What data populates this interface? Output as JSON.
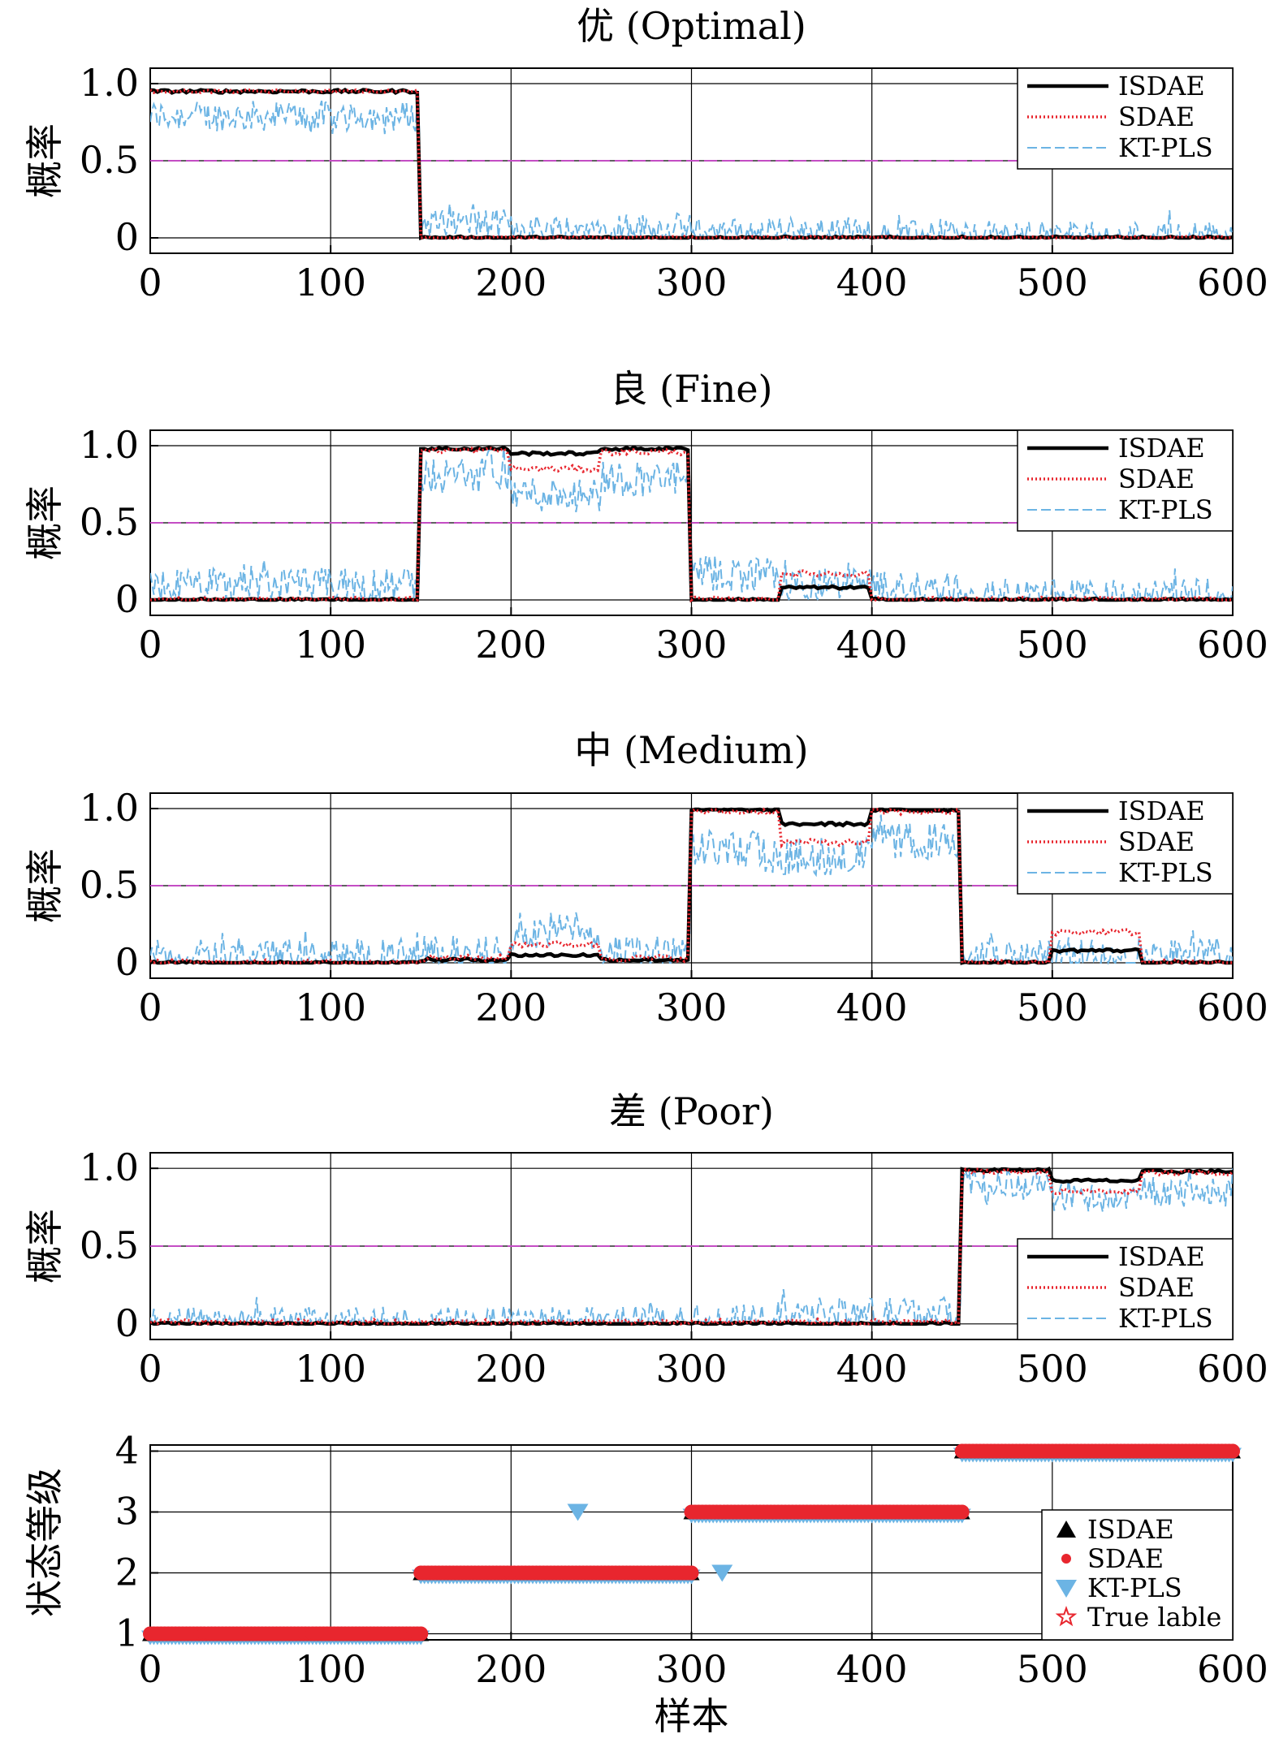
{
  "chart_data": [
    {
      "type": "line",
      "title": "优 (Optimal)",
      "ylabel": "概率",
      "xlim": [
        0,
        600
      ],
      "ylim": [
        -0.1,
        1.1
      ],
      "xticks": [
        "0",
        "100",
        "200",
        "300",
        "400",
        "500",
        "600"
      ],
      "yticks": [
        "0",
        "0.5",
        "1.0"
      ],
      "grid": true,
      "threshold": 0.5,
      "legend": {
        "position": "top-right",
        "entries": [
          "ISDAE",
          "SDAE",
          "KT-PLS"
        ]
      },
      "series": [
        {
          "name": "ISDAE",
          "segments": [
            {
              "x": [
                0,
                150
              ],
              "y": 0.95
            },
            {
              "x": [
                150,
                600
              ],
              "y": 0.0
            }
          ],
          "noise": 0.01
        },
        {
          "name": "SDAE",
          "segments": [
            {
              "x": [
                0,
                150
              ],
              "y": 0.95
            },
            {
              "x": [
                150,
                600
              ],
              "y": 0.0
            }
          ],
          "noise": 0.01
        },
        {
          "name": "KT-PLS",
          "segments": [
            {
              "x": [
                0,
                150
              ],
              "y": 0.8
            },
            {
              "x": [
                150,
                200
              ],
              "y": 0.1
            },
            {
              "x": [
                200,
                300
              ],
              "y": 0.07
            },
            {
              "x": [
                300,
                400
              ],
              "y": 0.04
            },
            {
              "x": [
                400,
                600
              ],
              "y": 0.02
            }
          ],
          "noise": 0.1
        }
      ]
    },
    {
      "type": "line",
      "title": "良 (Fine)",
      "ylabel": "概率",
      "xlim": [
        0,
        600
      ],
      "ylim": [
        -0.1,
        1.1
      ],
      "xticks": [
        "0",
        "100",
        "200",
        "300",
        "400",
        "500",
        "600"
      ],
      "yticks": [
        "0",
        "0.5",
        "1.0"
      ],
      "grid": true,
      "threshold": 0.5,
      "legend": {
        "position": "top-right",
        "entries": [
          "ISDAE",
          "SDAE",
          "KT-PLS"
        ]
      },
      "series": [
        {
          "name": "ISDAE",
          "segments": [
            {
              "x": [
                0,
                150
              ],
              "y": 0.0
            },
            {
              "x": [
                150,
                200
              ],
              "y": 0.98
            },
            {
              "x": [
                200,
                250
              ],
              "y": 0.95
            },
            {
              "x": [
                250,
                300
              ],
              "y": 0.98
            },
            {
              "x": [
                300,
                350
              ],
              "y": 0.0
            },
            {
              "x": [
                350,
                400
              ],
              "y": 0.08
            },
            {
              "x": [
                400,
                600
              ],
              "y": 0.0
            }
          ],
          "noise": 0.01
        },
        {
          "name": "SDAE",
          "segments": [
            {
              "x": [
                0,
                150
              ],
              "y": 0.0
            },
            {
              "x": [
                150,
                200
              ],
              "y": 0.97
            },
            {
              "x": [
                200,
                250
              ],
              "y": 0.85
            },
            {
              "x": [
                250,
                300
              ],
              "y": 0.96
            },
            {
              "x": [
                300,
                350
              ],
              "y": 0.0
            },
            {
              "x": [
                350,
                400
              ],
              "y": 0.17
            },
            {
              "x": [
                400,
                600
              ],
              "y": 0.0
            }
          ],
          "noise": 0.02
        },
        {
          "name": "KT-PLS",
          "segments": [
            {
              "x": [
                0,
                150
              ],
              "y": 0.1
            },
            {
              "x": [
                150,
                200
              ],
              "y": 0.82
            },
            {
              "x": [
                200,
                250
              ],
              "y": 0.7
            },
            {
              "x": [
                250,
                300
              ],
              "y": 0.8
            },
            {
              "x": [
                300,
                350
              ],
              "y": 0.18
            },
            {
              "x": [
                350,
                400
              ],
              "y": 0.1
            },
            {
              "x": [
                400,
                450
              ],
              "y": 0.08
            },
            {
              "x": [
                450,
                600
              ],
              "y": 0.03
            }
          ],
          "noise": 0.12
        }
      ]
    },
    {
      "type": "line",
      "title": "中 (Medium)",
      "ylabel": "概率",
      "xlim": [
        0,
        600
      ],
      "ylim": [
        -0.1,
        1.1
      ],
      "xticks": [
        "0",
        "100",
        "200",
        "300",
        "400",
        "500",
        "600"
      ],
      "yticks": [
        "0",
        "0.5",
        "1.0"
      ],
      "grid": true,
      "threshold": 0.5,
      "legend": {
        "position": "top-right",
        "entries": [
          "ISDAE",
          "SDAE",
          "KT-PLS"
        ]
      },
      "series": [
        {
          "name": "ISDAE",
          "segments": [
            {
              "x": [
                0,
                150
              ],
              "y": 0.0
            },
            {
              "x": [
                150,
                200
              ],
              "y": 0.02
            },
            {
              "x": [
                200,
                250
              ],
              "y": 0.05
            },
            {
              "x": [
                250,
                300
              ],
              "y": 0.02
            },
            {
              "x": [
                300,
                350
              ],
              "y": 0.99
            },
            {
              "x": [
                350,
                400
              ],
              "y": 0.9
            },
            {
              "x": [
                400,
                450
              ],
              "y": 0.99
            },
            {
              "x": [
                450,
                500
              ],
              "y": 0.0
            },
            {
              "x": [
                500,
                550
              ],
              "y": 0.08
            },
            {
              "x": [
                550,
                600
              ],
              "y": 0.0
            }
          ],
          "noise": 0.01
        },
        {
          "name": "SDAE",
          "segments": [
            {
              "x": [
                0,
                150
              ],
              "y": 0.0
            },
            {
              "x": [
                150,
                200
              ],
              "y": 0.03
            },
            {
              "x": [
                200,
                250
              ],
              "y": 0.12
            },
            {
              "x": [
                250,
                300
              ],
              "y": 0.03
            },
            {
              "x": [
                300,
                350
              ],
              "y": 0.98
            },
            {
              "x": [
                350,
                400
              ],
              "y": 0.78
            },
            {
              "x": [
                400,
                450
              ],
              "y": 0.98
            },
            {
              "x": [
                450,
                500
              ],
              "y": 0.0
            },
            {
              "x": [
                500,
                550
              ],
              "y": 0.2
            },
            {
              "x": [
                550,
                600
              ],
              "y": 0.0
            }
          ],
          "noise": 0.02
        },
        {
          "name": "KT-PLS",
          "segments": [
            {
              "x": [
                0,
                150
              ],
              "y": 0.05
            },
            {
              "x": [
                150,
                200
              ],
              "y": 0.07
            },
            {
              "x": [
                200,
                250
              ],
              "y": 0.22
            },
            {
              "x": [
                250,
                300
              ],
              "y": 0.07
            },
            {
              "x": [
                300,
                350
              ],
              "y": 0.75
            },
            {
              "x": [
                350,
                400
              ],
              "y": 0.7
            },
            {
              "x": [
                400,
                450
              ],
              "y": 0.8
            },
            {
              "x": [
                450,
                500
              ],
              "y": 0.04
            },
            {
              "x": [
                500,
                600
              ],
              "y": 0.06
            }
          ],
          "noise": 0.12
        }
      ]
    },
    {
      "type": "line",
      "title": "差 (Poor)",
      "ylabel": "概率",
      "xlim": [
        0,
        600
      ],
      "ylim": [
        -0.1,
        1.1
      ],
      "xticks": [
        "0",
        "100",
        "200",
        "300",
        "400",
        "500",
        "600"
      ],
      "yticks": [
        "0",
        "0.5",
        "1.0"
      ],
      "grid": true,
      "threshold": 0.5,
      "legend": {
        "position": "bottom-right",
        "entries": [
          "ISDAE",
          "SDAE",
          "KT-PLS"
        ]
      },
      "series": [
        {
          "name": "ISDAE",
          "segments": [
            {
              "x": [
                0,
                450
              ],
              "y": 0.0
            },
            {
              "x": [
                450,
                500
              ],
              "y": 0.99
            },
            {
              "x": [
                500,
                550
              ],
              "y": 0.92
            },
            {
              "x": [
                550,
                600
              ],
              "y": 0.98
            }
          ],
          "noise": 0.01
        },
        {
          "name": "SDAE",
          "segments": [
            {
              "x": [
                0,
                450
              ],
              "y": 0.01
            },
            {
              "x": [
                450,
                500
              ],
              "y": 0.98
            },
            {
              "x": [
                500,
                550
              ],
              "y": 0.85
            },
            {
              "x": [
                550,
                600
              ],
              "y": 0.97
            }
          ],
          "noise": 0.02
        },
        {
          "name": "KT-PLS",
          "segments": [
            {
              "x": [
                0,
                300
              ],
              "y": 0.02
            },
            {
              "x": [
                300,
                350
              ],
              "y": 0.04
            },
            {
              "x": [
                350,
                450
              ],
              "y": 0.08
            },
            {
              "x": [
                450,
                500
              ],
              "y": 0.9
            },
            {
              "x": [
                500,
                550
              ],
              "y": 0.82
            },
            {
              "x": [
                550,
                600
              ],
              "y": 0.86
            }
          ],
          "noise": 0.1
        }
      ]
    },
    {
      "type": "scatter",
      "title": "",
      "ylabel": "状态等级",
      "xlabel": "样本",
      "xlim": [
        0,
        600
      ],
      "ylim": [
        0.9,
        4.1
      ],
      "xticks": [
        "0",
        "100",
        "200",
        "300",
        "400",
        "500",
        "600"
      ],
      "yticks": [
        "1",
        "2",
        "3",
        "4"
      ],
      "grid": true,
      "legend": {
        "position": "bottom-right",
        "entries": [
          "ISDAE",
          "SDAE",
          "KT-PLS",
          "True lable"
        ]
      },
      "levels": [
        {
          "x": [
            0,
            150
          ],
          "y": 1
        },
        {
          "x": [
            150,
            300
          ],
          "y": 2
        },
        {
          "x": [
            300,
            450
          ],
          "y": 3
        },
        {
          "x": [
            450,
            600
          ],
          "y": 4
        }
      ],
      "ktpls_outliers": [
        {
          "x": 237,
          "y": 3
        },
        {
          "x": 317,
          "y": 2
        }
      ]
    }
  ],
  "colors": {
    "ISDAE": "#000000",
    "SDAE": "#e8262e",
    "KT-PLS": "#6cb4e4",
    "threshold": "#c44dc4",
    "grid": "#000000"
  }
}
